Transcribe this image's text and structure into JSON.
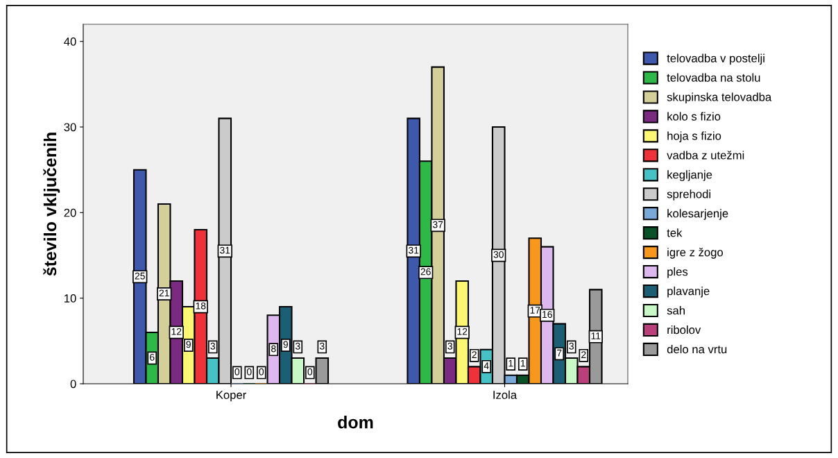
{
  "chart_data": {
    "type": "bar",
    "xlabel": "dom",
    "ylabel": "število vključenih",
    "categories": [
      "Koper",
      "Izola"
    ],
    "ylim": [
      0,
      42
    ],
    "yticks": [
      0,
      10,
      20,
      30,
      40
    ],
    "grid": false,
    "legend": "right",
    "data_labels": true,
    "series": [
      {
        "name": "telovadba v postelji",
        "color": "#3e58ac",
        "values": [
          25,
          31
        ]
      },
      {
        "name": "telovadba na stolu",
        "color": "#2eb848",
        "values": [
          6,
          26
        ]
      },
      {
        "name": "skupinska telovadba",
        "color": "#d4cf98",
        "values": [
          21,
          37
        ]
      },
      {
        "name": "kolo s fizio",
        "color": "#7a2a80",
        "values": [
          12,
          3
        ]
      },
      {
        "name": "hoja s fizio",
        "color": "#fbf775",
        "values": [
          9,
          12
        ]
      },
      {
        "name": "vadba z utežmi",
        "color": "#ef3239",
        "values": [
          18,
          2
        ]
      },
      {
        "name": "kegljanje",
        "color": "#46c1c5",
        "values": [
          3,
          4
        ]
      },
      {
        "name": "sprehodi",
        "color": "#cbcbcb",
        "values": [
          31,
          30
        ]
      },
      {
        "name": "kolesarjenje",
        "color": "#78a9d8",
        "values": [
          0,
          1
        ]
      },
      {
        "name": "tek",
        "color": "#0b5128",
        "values": [
          0,
          1
        ]
      },
      {
        "name": "igre z žogo",
        "color": "#f7981d",
        "values": [
          0,
          17
        ]
      },
      {
        "name": "ples",
        "color": "#ddb8ee",
        "values": [
          8,
          16
        ]
      },
      {
        "name": "plavanje",
        "color": "#1c5f75",
        "values": [
          9,
          7
        ]
      },
      {
        "name": "sah",
        "color": "#c9f8c7",
        "values": [
          3,
          3
        ]
      },
      {
        "name": "ribolov",
        "color": "#b9407a",
        "values": [
          0,
          2
        ]
      },
      {
        "name": "delo na vrtu",
        "color": "#9a9a9a",
        "values": [
          3,
          11
        ]
      }
    ]
  }
}
